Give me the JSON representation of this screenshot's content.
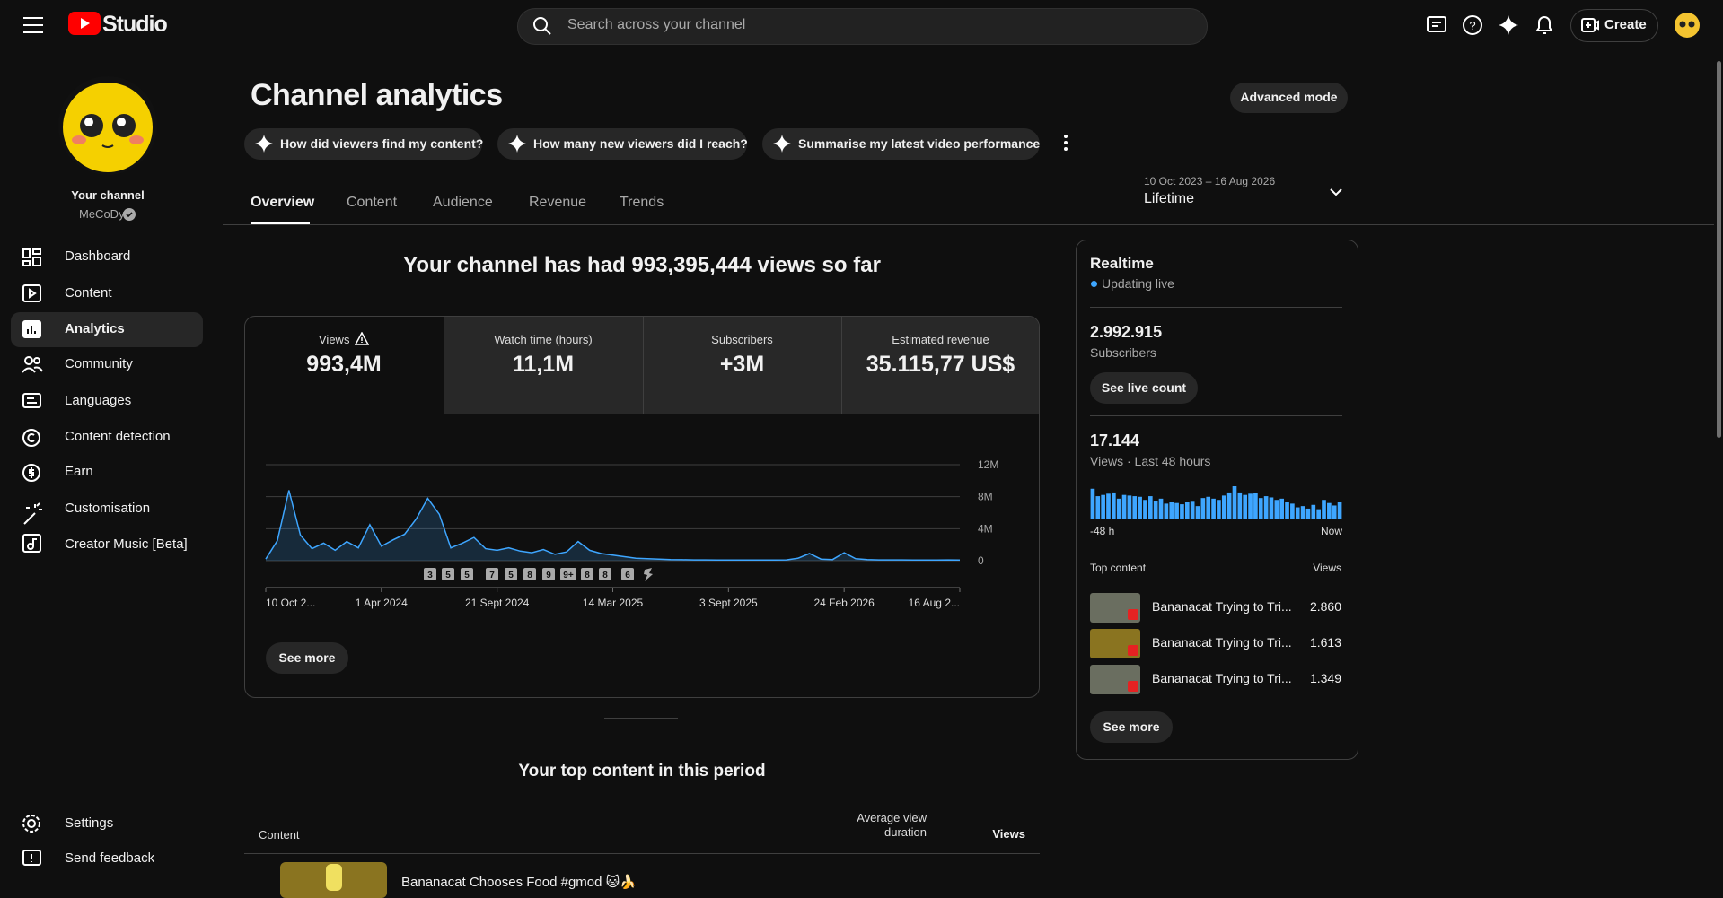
{
  "header": {
    "logo": "Studio",
    "search_placeholder": "Search across your channel",
    "create": "Create"
  },
  "sidebar": {
    "channel_label": "Your channel",
    "channel_name": "MeCoDy",
    "nav": [
      "Dashboard",
      "Content",
      "Analytics",
      "Community",
      "Languages",
      "Content detection",
      "Earn",
      "Customisation",
      "Creator Music [Beta]"
    ],
    "footer": [
      "Settings",
      "Send feedback"
    ]
  },
  "page": {
    "title": "Channel analytics",
    "advanced_mode": "Advanced mode",
    "prompts": [
      "How did viewers find my content?",
      "How many new viewers did I reach?",
      "Summarise my latest video performance"
    ],
    "tabs": [
      "Overview",
      "Content",
      "Audience",
      "Revenue",
      "Trends"
    ],
    "date_range": "10 Oct 2023 – 16 Aug 2026",
    "period": "Lifetime",
    "headline": "Your channel has had 993,395,444 views so far",
    "metrics": [
      {
        "label": "Views",
        "value": "993,4M"
      },
      {
        "label": "Watch time (hours)",
        "value": "11,1M"
      },
      {
        "label": "Subscribers",
        "value": "+3M"
      },
      {
        "label": "Estimated revenue",
        "value": "35.115,77 US$"
      }
    ],
    "see_more": "See more",
    "top_content_title": "Your top content in this period",
    "table": {
      "headers": [
        "Content",
        "Average view duration",
        "Views"
      ],
      "rows": [
        [
          "Bananacat Chooses Food #gmod 🐱🍌"
        ]
      ]
    }
  },
  "realtime": {
    "title": "Realtime",
    "status": "Updating live",
    "subscribers": "2.992.915",
    "subscribers_label": "Subscribers",
    "live_count": "See live count",
    "views": "17.144",
    "views_label": "Views · Last 48 hours",
    "top_content_label": "Top content",
    "views_header": "Views",
    "top_content": [
      {
        "title": "Bananacat Trying to Tri...",
        "views": "2.860"
      },
      {
        "title": "Bananacat Trying to Tri...",
        "views": "1.613"
      },
      {
        "title": "Bananacat Trying to Tri...",
        "views": "1.349"
      }
    ],
    "see_more": "See more"
  },
  "chart_data": [
    {
      "type": "line",
      "color": "#3ea6ff",
      "categories": [
        "10 Oct 2...",
        null,
        null,
        null,
        null,
        null,
        null,
        null,
        null,
        null,
        "1 Apr 2024",
        null,
        null,
        null,
        null,
        null,
        null,
        null,
        null,
        null,
        "21 Sept 2024",
        null,
        null,
        null,
        null,
        null,
        null,
        null,
        null,
        null,
        "14 Mar 2025",
        null,
        null,
        null,
        null,
        null,
        null,
        null,
        null,
        null,
        "3 Sept 2025",
        null,
        null,
        null,
        null,
        null,
        null,
        null,
        null,
        null,
        "24 Feb 2026",
        null,
        null,
        null,
        null,
        null,
        null,
        null,
        null,
        null,
        "16 Aug 2..."
      ],
      "values": [
        200000,
        2500000,
        8800000,
        3200000,
        1500000,
        2200000,
        1300000,
        2400000,
        1600000,
        4500000,
        1800000,
        2600000,
        3300000,
        5200000,
        7800000,
        5800000,
        1600000,
        2200000,
        2900000,
        1500000,
        1300000,
        1600000,
        1200000,
        1000000,
        1400000,
        800000,
        1100000,
        2400000,
        1300000,
        900000,
        700000,
        500000,
        300000,
        250000,
        200000,
        150000,
        120000,
        100000,
        100000,
        90000,
        90000,
        80000,
        80000,
        80000,
        90000,
        100000,
        300000,
        900000,
        200000,
        150000,
        1000000,
        250000,
        150000,
        100000,
        100000,
        100000,
        80000,
        90000,
        80000,
        100000,
        90000
      ],
      "ylim": [
        0,
        12000000
      ],
      "yticks": [
        0,
        {
          "value": 4000000,
          "label": "4M"
        },
        {
          "value": 8000000,
          "label": "8M"
        },
        {
          "value": 12000000,
          "label": "12M"
        }
      ],
      "grid": true,
      "annotations": [
        "3",
        "5",
        "5",
        "7",
        "5",
        "8",
        "9",
        "9+",
        "8",
        "8",
        "6"
      ]
    },
    {
      "type": "bar",
      "color": "#3ea6ff",
      "categories": [
        "-48 h",
        null,
        null,
        null,
        null,
        null,
        null,
        null,
        null,
        null,
        null,
        null,
        null,
        null,
        null,
        null,
        null,
        null,
        null,
        null,
        null,
        null,
        null,
        null,
        null,
        null,
        null,
        null,
        null,
        null,
        null,
        null,
        null,
        null,
        null,
        null,
        null,
        null,
        null,
        null,
        null,
        null,
        null,
        null,
        null,
        null,
        null,
        "Now"
      ],
      "values": [
        480,
        360,
        380,
        400,
        420,
        320,
        380,
        370,
        360,
        350,
        300,
        360,
        280,
        320,
        240,
        260,
        250,
        230,
        260,
        270,
        200,
        330,
        350,
        320,
        300,
        370,
        420,
        520,
        420,
        380,
        400,
        410,
        330,
        360,
        340,
        300,
        320,
        260,
        240,
        180,
        200,
        160,
        220,
        150,
        300,
        250,
        210,
        260
      ]
    }
  ]
}
